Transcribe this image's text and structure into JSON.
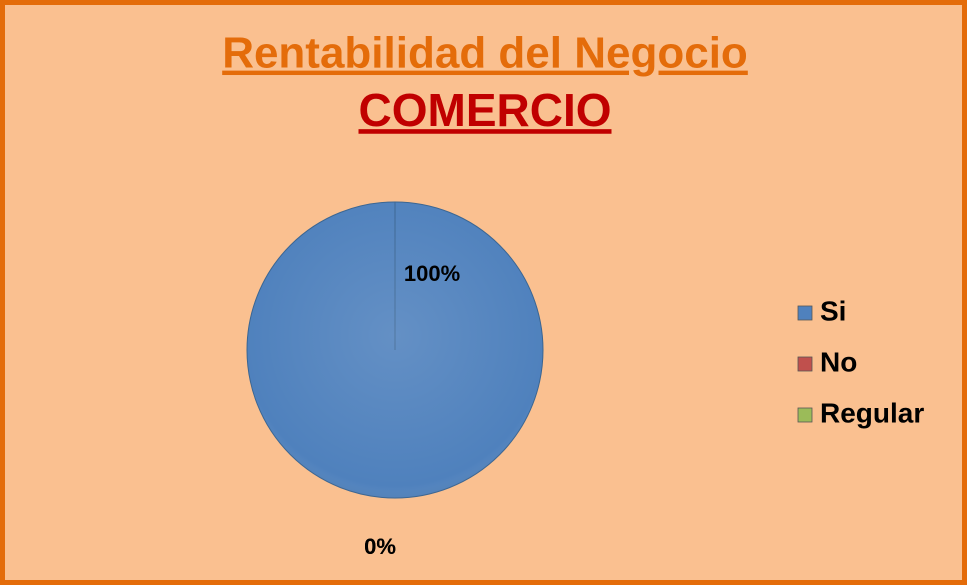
{
  "chart_data": {
    "type": "pie",
    "title": "Rentabilidad del Negocio",
    "subtitle": "COMERCIO",
    "categories": [
      "Si",
      "No",
      "Regular"
    ],
    "values": [
      100,
      0,
      0
    ],
    "value_labels": [
      "100%",
      "0%",
      "0%"
    ],
    "colors": [
      "#4f81bd",
      "#c0504d",
      "#9bbb59"
    ],
    "legend": "right"
  }
}
